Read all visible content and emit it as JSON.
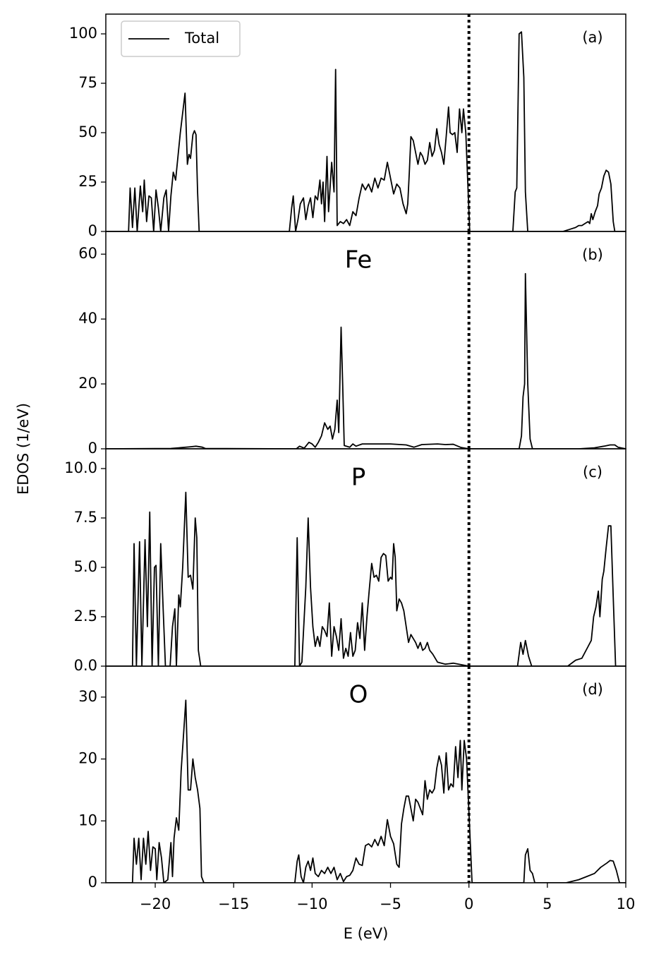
{
  "chart_data": [
    {
      "type": "line",
      "panel_label": "(a)",
      "ylabel": "EDOS (1/eV)",
      "legend": "upper left",
      "vline": 0,
      "xlim": [
        -23.15,
        10
      ],
      "ylim": [
        0,
        110
      ],
      "yticks": [
        0,
        25,
        50,
        75,
        100
      ],
      "x": [
        -23.15,
        -21.7,
        -21.6,
        -21.45,
        -21.3,
        -21.15,
        -20.95,
        -20.8,
        -20.7,
        -20.55,
        -20.4,
        -20.25,
        -20.1,
        -19.95,
        -19.8,
        -19.65,
        -19.45,
        -19.3,
        -19.15,
        -19.0,
        -18.85,
        -18.7,
        -18.55,
        -18.4,
        -18.1,
        -17.95,
        -17.85,
        -17.75,
        -17.6,
        -17.5,
        -17.4,
        -17.3,
        -17.2,
        -11.45,
        -11.3,
        -11.2,
        -11.05,
        -10.9,
        -10.75,
        -10.55,
        -10.4,
        -10.25,
        -10.1,
        -9.95,
        -9.8,
        -9.65,
        -9.5,
        -9.4,
        -9.3,
        -9.2,
        -9.05,
        -8.95,
        -8.75,
        -8.6,
        -8.5,
        -8.4,
        -8.2,
        -8.0,
        -7.8,
        -7.6,
        -7.4,
        -7.2,
        -7.0,
        -6.8,
        -6.6,
        -6.4,
        -6.2,
        -6.0,
        -5.8,
        -5.6,
        -5.4,
        -5.2,
        -5.0,
        -4.8,
        -4.6,
        -4.4,
        -4.2,
        -4.0,
        -3.9,
        -3.8,
        -3.7,
        -3.55,
        -3.4,
        -3.25,
        -3.1,
        -2.95,
        -2.8,
        -2.65,
        -2.5,
        -2.35,
        -2.2,
        -2.05,
        -1.9,
        -1.75,
        -1.6,
        -1.45,
        -1.3,
        -1.2,
        -1.05,
        -0.9,
        -0.75,
        -0.6,
        -0.45,
        -0.35,
        -0.2,
        0.05,
        2.8,
        2.95,
        3.05,
        3.2,
        3.35,
        3.5,
        3.6,
        3.75,
        6.0,
        6.4,
        6.8,
        7.0,
        7.2,
        7.4,
        7.6,
        7.7,
        7.8,
        7.9,
        8.05,
        8.2,
        8.3,
        8.45,
        8.6,
        8.75,
        8.9,
        9.05,
        9.2,
        9.3,
        10
      ],
      "series": [
        {
          "name": "Total",
          "color": "#000000",
          "values": [
            0,
            0,
            22,
            2,
            22,
            0,
            23,
            10,
            26,
            5,
            18,
            17,
            0,
            21,
            12,
            0,
            17,
            21,
            0,
            18,
            30,
            26,
            38,
            50,
            70,
            34,
            39,
            37,
            49,
            51,
            49,
            20,
            0,
            0,
            12,
            18,
            0,
            6,
            14,
            17,
            6,
            13,
            17,
            7,
            18,
            16,
            26,
            14,
            25,
            5,
            38,
            10,
            35,
            20,
            82,
            3,
            5,
            4,
            6,
            3,
            10,
            8,
            17,
            24,
            21,
            24,
            20,
            27,
            22,
            27,
            26,
            35,
            27,
            19,
            24,
            22,
            14,
            9,
            14,
            30,
            48,
            46,
            40,
            34,
            40,
            38,
            34,
            36,
            45,
            38,
            41,
            52,
            44,
            40,
            34,
            48,
            63,
            50,
            49,
            50,
            40,
            62,
            50,
            62,
            50,
            0,
            0,
            20,
            22,
            100,
            101,
            78,
            20,
            0,
            0,
            1,
            2,
            3,
            3,
            4,
            5,
            4,
            9,
            6,
            10,
            13,
            19,
            22,
            28,
            31,
            30,
            24,
            5,
            0,
            0
          ]
        }
      ]
    },
    {
      "type": "line",
      "title": "Fe",
      "panel_label": "(b)",
      "vline": 0,
      "xlim": [
        -23.15,
        10
      ],
      "ylim": [
        0,
        67
      ],
      "yticks": [
        0,
        20,
        40,
        60
      ],
      "x": [
        -23.15,
        -19,
        -18.5,
        -17.8,
        -17.4,
        -17.0,
        -16.8,
        -11,
        -10.8,
        -10.5,
        -10.2,
        -10.0,
        -9.8,
        -9.6,
        -9.4,
        -9.2,
        -9.0,
        -8.85,
        -8.7,
        -8.55,
        -8.4,
        -8.3,
        -8.15,
        -8.05,
        -7.95,
        -7.6,
        -7.4,
        -7.2,
        -6.8,
        -6.0,
        -5.0,
        -4.0,
        -3.5,
        -3.0,
        -2.0,
        -1.5,
        -1.0,
        -0.5,
        0,
        3.2,
        3.35,
        3.45,
        3.55,
        3.6,
        3.75,
        3.9,
        4.05,
        7.0,
        8.0,
        8.6,
        9.0,
        9.3,
        9.5,
        10
      ],
      "series": [
        {
          "color": "#000000",
          "values": [
            0,
            0.1,
            0.3,
            0.6,
            0.8,
            0.5,
            0.1,
            0,
            0.8,
            0.2,
            2,
            1.5,
            0.5,
            2,
            4,
            8,
            6,
            7,
            3,
            6,
            15,
            5,
            37.5,
            20,
            1,
            0.5,
            1.5,
            0.8,
            1.5,
            1.5,
            1.5,
            1.2,
            0.5,
            1.3,
            1.5,
            1.3,
            1.4,
            0.4,
            0,
            0,
            4,
            16,
            20,
            54,
            20,
            3,
            0,
            0,
            0.3,
            0.8,
            1.2,
            1.2,
            0.5,
            0
          ]
        }
      ]
    },
    {
      "type": "line",
      "title": "P",
      "panel_label": "(c)",
      "vline": 0,
      "xlim": [
        -23.15,
        10
      ],
      "ylim": [
        0,
        11
      ],
      "yticks": [
        {
          "value": 0,
          "label": "0.0"
        },
        2.5,
        {
          "value": 5,
          "label": "5.0"
        },
        7.5,
        {
          "value": 10,
          "label": "10.0"
        }
      ],
      "x": [
        -23.15,
        -21.45,
        -21.35,
        -21.2,
        -21.0,
        -20.85,
        -20.65,
        -20.5,
        -20.35,
        -20.2,
        -20.05,
        -19.95,
        -19.8,
        -19.65,
        -19.5,
        -19.35,
        -19.05,
        -18.9,
        -18.75,
        -18.65,
        -18.5,
        -18.4,
        -18.25,
        -18.05,
        -17.9,
        -17.75,
        -17.6,
        -17.45,
        -17.35,
        -17.25,
        -17.1,
        -11.1,
        -10.95,
        -10.8,
        -10.65,
        -10.4,
        -10.25,
        -10.1,
        -9.95,
        -9.8,
        -9.65,
        -9.5,
        -9.35,
        -9.2,
        -9.05,
        -8.9,
        -8.75,
        -8.6,
        -8.45,
        -8.3,
        -8.15,
        -8.0,
        -7.85,
        -7.7,
        -7.55,
        -7.4,
        -7.25,
        -7.1,
        -6.95,
        -6.8,
        -6.65,
        -6.5,
        -6.35,
        -6.2,
        -6.05,
        -5.9,
        -5.75,
        -5.6,
        -5.45,
        -5.3,
        -5.15,
        -5.0,
        -4.9,
        -4.8,
        -4.7,
        -4.6,
        -4.45,
        -4.3,
        -4.15,
        -4.0,
        -3.85,
        -3.7,
        -3.55,
        -3.4,
        -3.25,
        -3.1,
        -2.95,
        -2.8,
        -2.65,
        -2.5,
        -2.3,
        -2.15,
        -2.0,
        -1.5,
        -1.0,
        0,
        3.1,
        3.3,
        3.45,
        3.6,
        3.8,
        4.0,
        6.3,
        6.8,
        7.2,
        7.6,
        7.8,
        7.95,
        8.1,
        8.25,
        8.35,
        8.5,
        8.6,
        8.75,
        8.9,
        9.05,
        9.2,
        9.35,
        9.6,
        10
      ],
      "series": [
        {
          "color": "#000000",
          "values": [
            0,
            0,
            6.2,
            0,
            6.3,
            0,
            6.4,
            2,
            7.8,
            0,
            5,
            5.1,
            0,
            6.2,
            3,
            0,
            0,
            2,
            2.9,
            0,
            3.6,
            3,
            5,
            8.8,
            4.5,
            4.6,
            3.9,
            7.5,
            6.5,
            0.8,
            0,
            0,
            6.5,
            0,
            0.2,
            4,
            7.5,
            4,
            2,
            1,
            1.5,
            1,
            2,
            1.8,
            1.5,
            3.2,
            0.5,
            2,
            1.5,
            0.8,
            2.4,
            0.4,
            0.9,
            0.5,
            1.7,
            0.5,
            0.8,
            2.2,
            1.4,
            3.2,
            0.8,
            2.5,
            3.9,
            5.2,
            4.5,
            4.6,
            4.3,
            5.5,
            5.7,
            5.6,
            4.3,
            4.5,
            4.4,
            6.2,
            5.5,
            2.8,
            3.4,
            3.2,
            2.8,
            2,
            1.2,
            1.6,
            1.4,
            1.2,
            0.9,
            1.2,
            0.8,
            0.9,
            1.2,
            0.8,
            0.6,
            0.4,
            0.2,
            0.1,
            0.15,
            0,
            0,
            1.2,
            0.6,
            1.3,
            0.5,
            0,
            0,
            0.3,
            0.4,
            1,
            1.3,
            2.5,
            3,
            3.8,
            2.5,
            4.4,
            4.8,
            6,
            7.1,
            7.1,
            3.5,
            0,
            0,
            0
          ]
        }
      ]
    },
    {
      "type": "line",
      "title": "O",
      "panel_label": "(d)",
      "vline": 0,
      "xlabel": "E (eV)",
      "xlim": [
        -23.15,
        10
      ],
      "ylim": [
        0,
        35
      ],
      "yticks": [
        0,
        10,
        20,
        30
      ],
      "xticks": [
        {
          "value": -20,
          "label": "−20"
        },
        {
          "value": -15,
          "label": "−15"
        },
        {
          "value": -10,
          "label": "−10"
        },
        {
          "value": -5,
          "label": "−5"
        },
        0,
        5,
        10
      ],
      "x": [
        -23.15,
        -21.45,
        -21.35,
        -21.2,
        -21.05,
        -20.9,
        -20.75,
        -20.6,
        -20.45,
        -20.3,
        -20.15,
        -20.0,
        -19.9,
        -19.75,
        -19.6,
        -19.45,
        -19.2,
        -19.0,
        -18.9,
        -18.8,
        -18.65,
        -18.5,
        -18.35,
        -18.05,
        -17.9,
        -17.75,
        -17.6,
        -17.45,
        -17.3,
        -17.15,
        -17.05,
        -16.9,
        -11.1,
        -10.95,
        -10.85,
        -10.7,
        -10.55,
        -10.4,
        -10.25,
        -10.1,
        -9.95,
        -9.8,
        -9.6,
        -9.4,
        -9.2,
        -9.0,
        -8.8,
        -8.6,
        -8.4,
        -8.2,
        -8.0,
        -7.8,
        -7.6,
        -7.4,
        -7.2,
        -7.0,
        -6.8,
        -6.6,
        -6.4,
        -6.2,
        -6.0,
        -5.8,
        -5.6,
        -5.4,
        -5.2,
        -5.0,
        -4.8,
        -4.6,
        -4.45,
        -4.3,
        -4.15,
        -4.0,
        -3.85,
        -3.7,
        -3.55,
        -3.4,
        -3.25,
        -3.1,
        -2.95,
        -2.8,
        -2.65,
        -2.5,
        -2.35,
        -2.2,
        -2.05,
        -1.9,
        -1.75,
        -1.6,
        -1.45,
        -1.3,
        -1.15,
        -1.0,
        -0.85,
        -0.7,
        -0.55,
        -0.45,
        -0.3,
        -0.15,
        0.2,
        3.5,
        3.6,
        3.75,
        3.9,
        4.05,
        4.2,
        6.2,
        7,
        7.5,
        8,
        8.4,
        8.8,
        9.0,
        9.2,
        9.4,
        9.6,
        10
      ],
      "series": [
        {
          "color": "#000000",
          "values": [
            0,
            0,
            7.2,
            3,
            7.2,
            0.5,
            7.2,
            3,
            8.3,
            2,
            5.8,
            5.5,
            0.5,
            6.5,
            4,
            0,
            0.5,
            6.5,
            1,
            7.2,
            10.5,
            8.5,
            18,
            29.5,
            15,
            15,
            20,
            17,
            15,
            12,
            1,
            0,
            0,
            3.5,
            4.5,
            1,
            0,
            2.5,
            3.5,
            2,
            4,
            1.5,
            1,
            2,
            1.5,
            2.5,
            1.5,
            2.5,
            0.5,
            1.5,
            0.2,
            1,
            1.2,
            2,
            4,
            3,
            2.8,
            6,
            6.3,
            5.8,
            7,
            6,
            7.5,
            6,
            10.2,
            7.5,
            6.3,
            3,
            2.5,
            9.5,
            12,
            14,
            14,
            12,
            10,
            13.5,
            13,
            12,
            11,
            16.5,
            13.5,
            15,
            14.5,
            15.2,
            18.5,
            20.5,
            19,
            14.5,
            21,
            15,
            16,
            15.5,
            22,
            17,
            23,
            15,
            23,
            20,
            0,
            0,
            4.5,
            5.5,
            2,
            1.5,
            0,
            0,
            0.5,
            1,
            1.5,
            2.5,
            3.2,
            3.6,
            3.5,
            2,
            0,
            0
          ]
        }
      ]
    }
  ]
}
